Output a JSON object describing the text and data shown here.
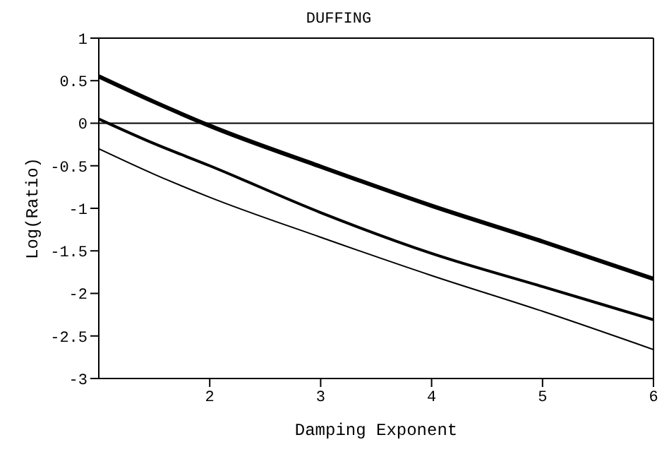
{
  "chart_data": {
    "type": "line",
    "title": "DUFFING",
    "xlabel": "Damping Exponent",
    "ylabel": "Log(Ratio)",
    "x": [
      1,
      1.5,
      2,
      3,
      4,
      5,
      6
    ],
    "series": [
      {
        "color": "#000000",
        "values": [
          0.55,
          0.25,
          -0.03,
          -0.51,
          -0.97,
          -1.39,
          -1.83
        ]
      },
      {
        "color": "#000000",
        "values": [
          0.05,
          -0.24,
          -0.5,
          -1.05,
          -1.53,
          -1.92,
          -2.31
        ]
      },
      {
        "color": "#000000",
        "values": [
          -0.3,
          -0.6,
          -0.87,
          -1.34,
          -1.79,
          -2.21,
          -2.66
        ]
      }
    ],
    "xlim": [
      1,
      6
    ],
    "xticks": [
      2,
      3,
      4,
      5,
      6
    ],
    "ylim": [
      -3,
      1
    ],
    "yticks": [
      -3,
      -2.5,
      -2,
      -1.5,
      -1,
      -0.5,
      0,
      0.5,
      1
    ],
    "ref_lines": [
      {
        "axis": "y",
        "value": 0,
        "color": "#000000"
      }
    ],
    "marker": "none",
    "line_style": "solid"
  }
}
